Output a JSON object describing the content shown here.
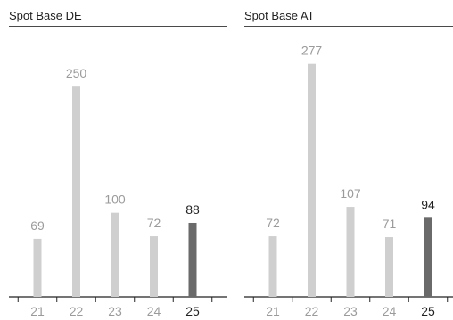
{
  "colors": {
    "bar": "#cfcfcf",
    "bar_highlight": "#6a6a6a",
    "label": "#9b9b9b",
    "label_highlight": "#222222",
    "axis": "#222222"
  },
  "chart_data": [
    {
      "type": "bar",
      "title": "Spot Base DE",
      "categories": [
        "21",
        "22",
        "23",
        "24",
        "25"
      ],
      "values": [
        69,
        250,
        100,
        72,
        88
      ],
      "highlight_index": 4,
      "ylim": [
        0,
        300
      ],
      "grid": false
    },
    {
      "type": "bar",
      "title": "Spot Base AT",
      "categories": [
        "21",
        "22",
        "23",
        "24",
        "25"
      ],
      "values": [
        72,
        277,
        107,
        71,
        94
      ],
      "highlight_index": 4,
      "ylim": [
        0,
        300
      ],
      "grid": false
    }
  ]
}
